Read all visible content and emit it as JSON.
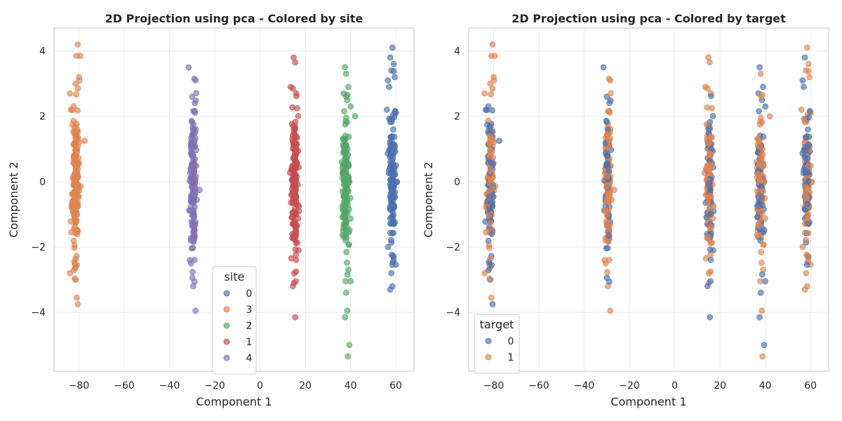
{
  "chart_data": [
    {
      "type": "scatter",
      "title": "2D Projection using pca - Colored by site",
      "xlabel": "Component 1",
      "ylabel": "Component 2",
      "xlim": [
        -91,
        68
      ],
      "ylim": [
        -5.8,
        4.7
      ],
      "xticks": [
        -80,
        -60,
        -40,
        -20,
        0,
        20,
        40,
        60
      ],
      "yticks": [
        -4,
        -2,
        0,
        2,
        4
      ],
      "grid": true,
      "legend": {
        "title": "site",
        "placement": "lower-center",
        "entries": [
          "0",
          "3",
          "2",
          "1",
          "4"
        ]
      },
      "series": [
        {
          "name": "0",
          "color": "#4c72b0",
          "cluster_x": 58.5,
          "x_spread": 1.4,
          "y_range": [
            -3.3,
            4.1
          ],
          "n": 170,
          "points": [
            [
              58.5,
              4.1
            ],
            [
              57.5,
              3.8
            ],
            [
              59,
              3.6
            ],
            [
              58,
              3.4
            ],
            [
              56.5,
              3.1
            ],
            [
              59.5,
              3.2
            ],
            [
              57,
              2.9
            ],
            [
              56,
              2.2
            ],
            [
              60,
              2.1
            ],
            [
              58.5,
              -3.2
            ],
            [
              58,
              -2.8
            ],
            [
              57.5,
              -3.3
            ],
            [
              59,
              -2.4
            ],
            [
              56.5,
              -2.0
            ]
          ]
        },
        {
          "name": "3",
          "color": "#dd8452",
          "cluster_x": -81.5,
          "x_spread": 1.5,
          "y_range": [
            -3.75,
            4.2
          ],
          "n": 200,
          "points": [
            [
              -80.5,
              4.2
            ],
            [
              -81,
              3.85
            ],
            [
              -79.5,
              3.85
            ],
            [
              -80,
              3.2
            ],
            [
              -79.8,
              3.1
            ],
            [
              -81.5,
              3.0
            ],
            [
              -80.5,
              2.85
            ],
            [
              -84,
              2.7
            ],
            [
              -83.5,
              2.2
            ],
            [
              -84,
              -2.8
            ],
            [
              -81.5,
              -3.0
            ],
            [
              -81,
              -3.55
            ],
            [
              -80.5,
              -3.75
            ],
            [
              -82,
              -2.45
            ],
            [
              -77.5,
              1.25
            ]
          ]
        },
        {
          "name": "2",
          "color": "#55a868",
          "cluster_x": 37.8,
          "x_spread": 1.4,
          "y_range": [
            -5.35,
            3.5
          ],
          "n": 190,
          "points": [
            [
              37.5,
              3.5
            ],
            [
              38,
              3.3
            ],
            [
              39,
              2.9
            ],
            [
              37,
              2.7
            ],
            [
              38.5,
              2.5
            ],
            [
              42,
              2.0
            ],
            [
              40,
              2.3
            ],
            [
              37.8,
              -3.05
            ],
            [
              40,
              -3.05
            ],
            [
              38,
              -3.4
            ],
            [
              38.5,
              -3.95
            ],
            [
              37.5,
              -4.15
            ],
            [
              39.5,
              -5.0
            ],
            [
              38.8,
              -5.35
            ]
          ]
        },
        {
          "name": "1",
          "color": "#c44e52",
          "cluster_x": 15.3,
          "x_spread": 1.4,
          "y_range": [
            -4.15,
            3.8
          ],
          "n": 180,
          "points": [
            [
              14.8,
              3.8
            ],
            [
              15.5,
              3.65
            ],
            [
              13.5,
              2.9
            ],
            [
              14.5,
              2.85
            ],
            [
              16,
              2.7
            ],
            [
              15,
              -3.1
            ],
            [
              14.5,
              -3.2
            ],
            [
              15.8,
              -3.05
            ],
            [
              15.5,
              -4.15
            ],
            [
              13.8,
              -2.35
            ],
            [
              17,
              -2.1
            ]
          ]
        },
        {
          "name": "4",
          "color": "#8172b3",
          "cluster_x": -29.5,
          "x_spread": 1.3,
          "y_range": [
            -3.95,
            3.5
          ],
          "n": 170,
          "points": [
            [
              -31.5,
              3.5
            ],
            [
              -29,
              3.15
            ],
            [
              -28.5,
              3.1
            ],
            [
              -30,
              2.6
            ],
            [
              -29.5,
              -3.2
            ],
            [
              -28.5,
              -3.95
            ],
            [
              -31,
              -2.4
            ],
            [
              -30.5,
              -2.5
            ]
          ]
        }
      ]
    },
    {
      "type": "scatter",
      "title": "2D Projection using pca - Colored by target",
      "xlabel": "Component 1",
      "ylabel": "Component 2",
      "xlim": [
        -91,
        68
      ],
      "ylim": [
        -5.8,
        4.7
      ],
      "xticks": [
        -80,
        -60,
        -40,
        -20,
        0,
        20,
        40,
        60
      ],
      "yticks": [
        -4,
        -2,
        0,
        2,
        4
      ],
      "grid": true,
      "legend": {
        "title": "target",
        "placement": "lower-left",
        "entries": [
          "0",
          "1"
        ]
      },
      "series": [
        {
          "name": "0",
          "color": "#4c72b0"
        },
        {
          "name": "1",
          "color": "#dd8452"
        }
      ],
      "target1_fraction": 0.6
    }
  ]
}
